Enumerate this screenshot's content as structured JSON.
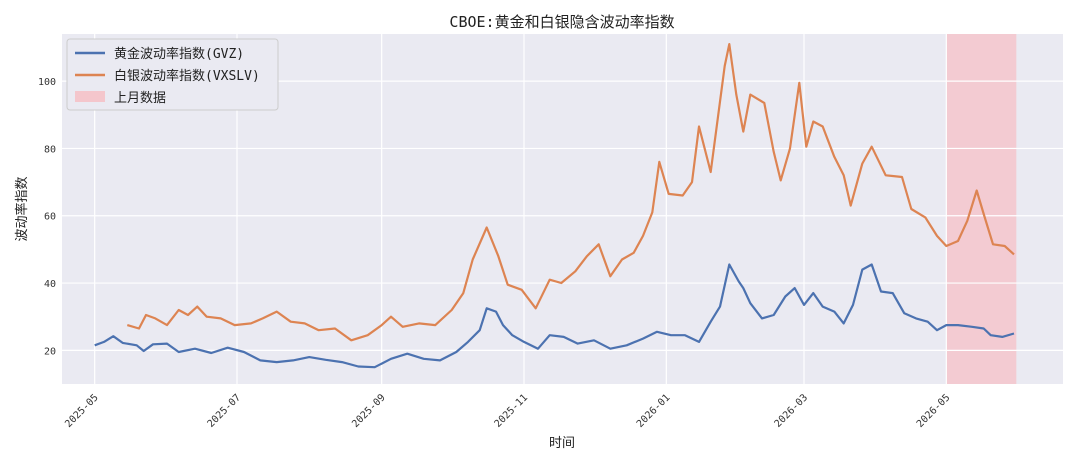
{
  "chart_data": {
    "type": "line",
    "title": "CBOE:黄金和白银隐含波动率指数",
    "xlabel": "时间",
    "ylabel": "波动率指数",
    "x_range": [
      "2025-04-17",
      "2026-06-20"
    ],
    "ylim": [
      10,
      114
    ],
    "x_ticks": [
      "2025-05",
      "2025-07",
      "2025-09",
      "2025-11",
      "2026-01",
      "2026-03",
      "2026-05"
    ],
    "y_ticks": [
      20,
      40,
      60,
      80,
      100
    ],
    "grid": true,
    "legend_position": "top-left",
    "highlight": {
      "label": "上月数据",
      "start": "2026-05-01",
      "end": "2026-05-31",
      "color": "#f4c6cc"
    },
    "series": [
      {
        "name": "黄金波动率指数(GVZ)",
        "color": "#4c72b0",
        "points": [
          [
            "2025-05-01",
            21.5
          ],
          [
            "2025-05-05",
            22.5
          ],
          [
            "2025-05-09",
            24.2
          ],
          [
            "2025-05-13",
            22.2
          ],
          [
            "2025-05-19",
            21.5
          ],
          [
            "2025-05-22",
            19.8
          ],
          [
            "2025-05-26",
            21.8
          ],
          [
            "2025-06-01",
            22.0
          ],
          [
            "2025-06-06",
            19.5
          ],
          [
            "2025-06-13",
            20.5
          ],
          [
            "2025-06-20",
            19.2
          ],
          [
            "2025-06-27",
            20.8
          ],
          [
            "2025-07-04",
            19.5
          ],
          [
            "2025-07-11",
            17.0
          ],
          [
            "2025-07-18",
            16.5
          ],
          [
            "2025-07-25",
            17.0
          ],
          [
            "2025-08-01",
            18.0
          ],
          [
            "2025-08-08",
            17.2
          ],
          [
            "2025-08-15",
            16.5
          ],
          [
            "2025-08-22",
            15.2
          ],
          [
            "2025-08-29",
            15.0
          ],
          [
            "2025-09-05",
            17.5
          ],
          [
            "2025-09-12",
            19.0
          ],
          [
            "2025-09-19",
            17.5
          ],
          [
            "2025-09-26",
            17.0
          ],
          [
            "2025-10-03",
            19.5
          ],
          [
            "2025-10-08",
            22.5
          ],
          [
            "2025-10-13",
            26.0
          ],
          [
            "2025-10-16",
            32.5
          ],
          [
            "2025-10-20",
            31.5
          ],
          [
            "2025-10-23",
            27.5
          ],
          [
            "2025-10-27",
            24.5
          ],
          [
            "2025-11-01",
            22.5
          ],
          [
            "2025-11-07",
            20.5
          ],
          [
            "2025-11-12",
            24.5
          ],
          [
            "2025-11-18",
            24.0
          ],
          [
            "2025-11-24",
            22.0
          ],
          [
            "2025-12-01",
            23.0
          ],
          [
            "2025-12-08",
            20.5
          ],
          [
            "2025-12-15",
            21.5
          ],
          [
            "2025-12-22",
            23.5
          ],
          [
            "2025-12-28",
            25.5
          ],
          [
            "2026-01-03",
            24.5
          ],
          [
            "2026-01-09",
            24.5
          ],
          [
            "2026-01-15",
            22.5
          ],
          [
            "2026-01-20",
            28.5
          ],
          [
            "2026-01-24",
            33.0
          ],
          [
            "2026-01-28",
            45.5
          ],
          [
            "2026-02-01",
            40.5
          ],
          [
            "2026-02-03",
            38.5
          ],
          [
            "2026-02-06",
            34.0
          ],
          [
            "2026-02-11",
            29.5
          ],
          [
            "2026-02-16",
            30.5
          ],
          [
            "2026-02-21",
            36.0
          ],
          [
            "2026-02-25",
            38.5
          ],
          [
            "2026-03-01",
            33.5
          ],
          [
            "2026-03-05",
            37.0
          ],
          [
            "2026-03-09",
            33.0
          ],
          [
            "2026-03-14",
            31.5
          ],
          [
            "2026-03-18",
            28.0
          ],
          [
            "2026-03-22",
            33.5
          ],
          [
            "2026-03-26",
            44.0
          ],
          [
            "2026-03-30",
            45.5
          ],
          [
            "2026-04-03",
            37.5
          ],
          [
            "2026-04-08",
            37.0
          ],
          [
            "2026-04-13",
            31.0
          ],
          [
            "2026-04-18",
            29.5
          ],
          [
            "2026-04-23",
            28.5
          ],
          [
            "2026-04-27",
            26.0
          ],
          [
            "2026-05-01",
            27.5
          ],
          [
            "2026-05-06",
            27.5
          ],
          [
            "2026-05-12",
            27.0
          ],
          [
            "2026-05-17",
            26.5
          ],
          [
            "2026-05-20",
            24.5
          ],
          [
            "2026-05-25",
            24.0
          ],
          [
            "2026-05-30",
            25.0
          ]
        ]
      },
      {
        "name": "白银波动率指数(VXSLV)",
        "color": "#dd8452",
        "points": [
          [
            "2025-05-15",
            27.5
          ],
          [
            "2025-05-20",
            26.5
          ],
          [
            "2025-05-23",
            30.5
          ],
          [
            "2025-05-27",
            29.5
          ],
          [
            "2025-06-01",
            27.5
          ],
          [
            "2025-06-06",
            32.0
          ],
          [
            "2025-06-10",
            30.5
          ],
          [
            "2025-06-14",
            33.0
          ],
          [
            "2025-06-18",
            30.0
          ],
          [
            "2025-06-24",
            29.5
          ],
          [
            "2025-06-30",
            27.5
          ],
          [
            "2025-07-07",
            28.0
          ],
          [
            "2025-07-12",
            29.5
          ],
          [
            "2025-07-18",
            31.5
          ],
          [
            "2025-07-24",
            28.5
          ],
          [
            "2025-07-30",
            28.0
          ],
          [
            "2025-08-05",
            26.0
          ],
          [
            "2025-08-12",
            26.5
          ],
          [
            "2025-08-19",
            23.0
          ],
          [
            "2025-08-26",
            24.5
          ],
          [
            "2025-09-01",
            27.5
          ],
          [
            "2025-09-05",
            30.0
          ],
          [
            "2025-09-10",
            27.0
          ],
          [
            "2025-09-17",
            28.0
          ],
          [
            "2025-09-24",
            27.5
          ],
          [
            "2025-10-01",
            32.0
          ],
          [
            "2025-10-06",
            37.0
          ],
          [
            "2025-10-10",
            47.0
          ],
          [
            "2025-10-16",
            56.5
          ],
          [
            "2025-10-21",
            48.0
          ],
          [
            "2025-10-25",
            39.5
          ],
          [
            "2025-10-31",
            38.0
          ],
          [
            "2025-11-06",
            32.5
          ],
          [
            "2025-11-12",
            41.0
          ],
          [
            "2025-11-17",
            40.0
          ],
          [
            "2025-11-23",
            43.5
          ],
          [
            "2025-11-28",
            48.0
          ],
          [
            "2025-12-03",
            51.5
          ],
          [
            "2025-12-08",
            42.0
          ],
          [
            "2025-12-13",
            47.0
          ],
          [
            "2025-12-18",
            49.0
          ],
          [
            "2025-12-22",
            54.0
          ],
          [
            "2025-12-26",
            61.0
          ],
          [
            "2025-12-29",
            76.0
          ],
          [
            "2026-01-02",
            66.5
          ],
          [
            "2026-01-08",
            66.0
          ],
          [
            "2026-01-12",
            70.0
          ],
          [
            "2026-01-15",
            86.5
          ],
          [
            "2026-01-20",
            73.0
          ],
          [
            "2026-01-26",
            104.5
          ],
          [
            "2026-01-28",
            111.0
          ],
          [
            "2026-01-31",
            96.0
          ],
          [
            "2026-02-03",
            85.0
          ],
          [
            "2026-02-06",
            96.0
          ],
          [
            "2026-02-12",
            93.5
          ],
          [
            "2026-02-16",
            79.0
          ],
          [
            "2026-02-19",
            70.5
          ],
          [
            "2026-02-23",
            80.0
          ],
          [
            "2026-02-27",
            99.5
          ],
          [
            "2026-03-02",
            80.5
          ],
          [
            "2026-03-05",
            88.0
          ],
          [
            "2026-03-09",
            86.5
          ],
          [
            "2026-03-14",
            77.5
          ],
          [
            "2026-03-18",
            72.0
          ],
          [
            "2026-03-21",
            63.0
          ],
          [
            "2026-03-26",
            75.5
          ],
          [
            "2026-03-30",
            80.5
          ],
          [
            "2026-04-05",
            72.0
          ],
          [
            "2026-04-12",
            71.5
          ],
          [
            "2026-04-16",
            62.0
          ],
          [
            "2026-04-22",
            59.5
          ],
          [
            "2026-04-27",
            54.0
          ],
          [
            "2026-05-01",
            51.0
          ],
          [
            "2026-05-06",
            52.5
          ],
          [
            "2026-05-10",
            58.5
          ],
          [
            "2026-05-14",
            67.5
          ],
          [
            "2026-05-17",
            60.5
          ],
          [
            "2026-05-21",
            51.5
          ],
          [
            "2026-05-26",
            51.0
          ],
          [
            "2026-05-30",
            48.5
          ]
        ]
      }
    ]
  }
}
